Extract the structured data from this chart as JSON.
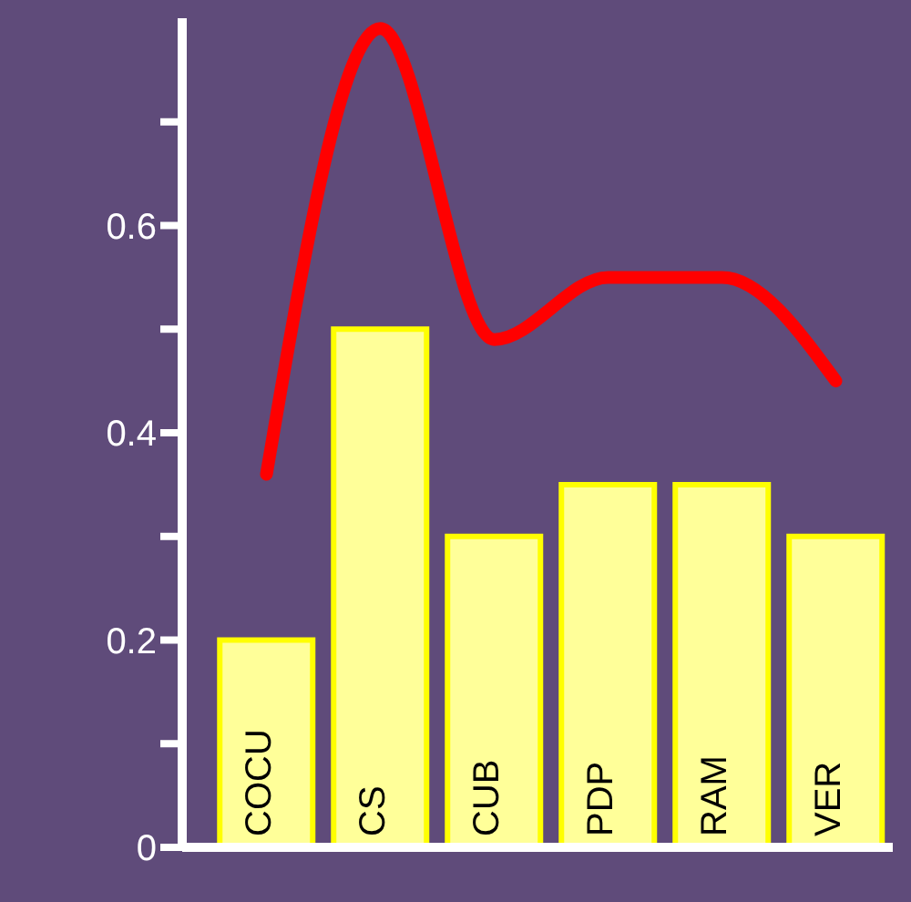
{
  "chart_data": {
    "type": "bar",
    "categories": [
      "COCU",
      "CS",
      "CUB",
      "PDP",
      "RAM",
      "VER"
    ],
    "series": [
      {
        "color": "#ffff99",
        "values": [
          0.2,
          0.5,
          0.3,
          0.35,
          0.35,
          0.3
        ]
      },
      {
        "type": "line",
        "color": "#ff0000",
        "values": [
          0.36,
          0.79,
          0.49,
          0.55,
          0.55,
          0.45
        ]
      }
    ],
    "ylim": [
      0,
      0.8
    ],
    "yticks": [
      0,
      {
        "value": 0.1,
        "label": null
      },
      0.2,
      {
        "value": 0.3,
        "label": null
      },
      0.4,
      {
        "value": 0.5,
        "label": null
      },
      0.6,
      {
        "value": 0.7,
        "label": null
      }
    ],
    "grid": false,
    "legend": false,
    "marker": "none",
    "line_style": "solid"
  }
}
